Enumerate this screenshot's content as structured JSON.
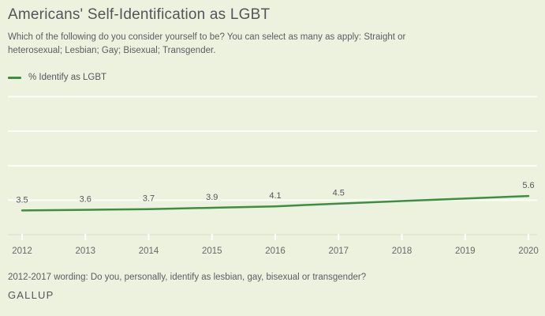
{
  "header": {
    "title": "Americans' Self-Identification as LGBT",
    "subtitle": "Which of the following do you consider yourself to be? You can select as many as apply: Straight or heterosexual; Lesbian; Gay; Bisexual; Transgender."
  },
  "legend": {
    "label": "% Identify as LGBT",
    "color": "#3e8e41"
  },
  "chart_data": {
    "type": "line",
    "title": "Americans' Self-Identification as LGBT",
    "legend": [
      "% Identify as LGBT"
    ],
    "legend_position": "top-left",
    "x_ticks": [
      2012,
      2013,
      2014,
      2015,
      2016,
      2017,
      2018,
      2019,
      2020
    ],
    "xlim": [
      2012,
      2020
    ],
    "ylim": [
      0,
      22
    ],
    "gridlines_y": [
      5,
      10,
      15,
      20
    ],
    "grid": "horizontal",
    "data_labels_visible": true,
    "series": [
      {
        "name": "% Identify as LGBT",
        "color": "#3e8e41",
        "points": [
          {
            "x": 2012,
            "y": 3.5
          },
          {
            "x": 2013,
            "y": 3.6
          },
          {
            "x": 2014,
            "y": 3.7
          },
          {
            "x": 2015,
            "y": 3.9
          },
          {
            "x": 2016,
            "y": 4.1
          },
          {
            "x": 2017,
            "y": 4.5
          },
          {
            "x": 2020,
            "y": 5.6
          }
        ]
      }
    ]
  },
  "footer": {
    "note": "2012-2017 wording: Do you, personally, identify as lesbian, gay, bisexual or transgender?",
    "source": "GALLUP"
  },
  "colors": {
    "background": "#edf2df",
    "gridline": "#fbfdf6",
    "axis_line": "#e2e7d6",
    "tick": "#fdfefb",
    "line": "#3e8e41",
    "text": "#55565a"
  }
}
